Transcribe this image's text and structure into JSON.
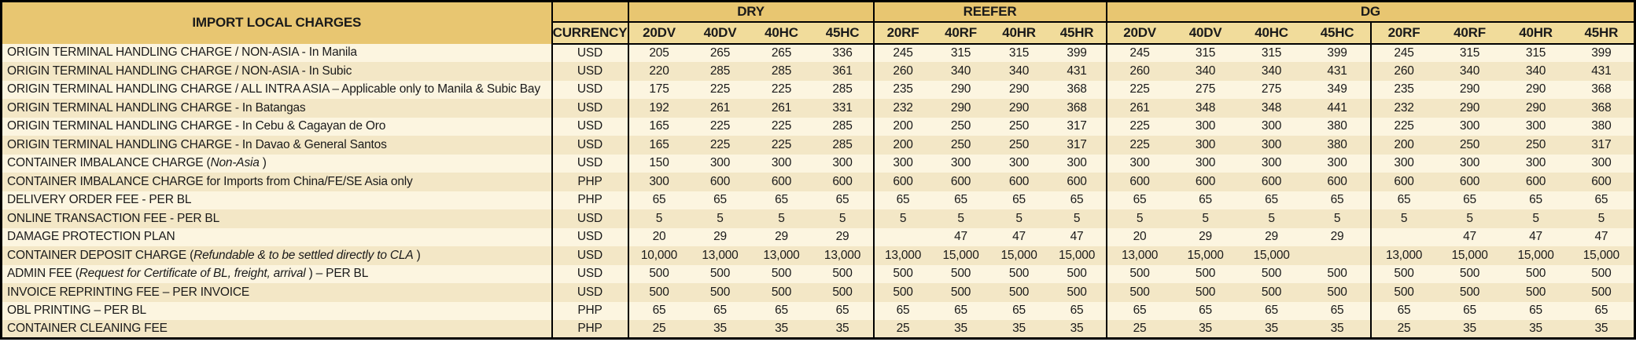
{
  "table": {
    "title": "IMPORT LOCAL CHARGES",
    "currency_header": "CURRENCY",
    "groups": [
      {
        "label": "DRY",
        "cols": [
          "20DV",
          "40DV",
          "40HC",
          "45HC"
        ]
      },
      {
        "label": "REEFER",
        "cols": [
          "20RF",
          "40RF",
          "40HR",
          "45HR"
        ]
      },
      {
        "label": "DG",
        "cols": [
          "20DV",
          "40DV",
          "40HC",
          "45HC",
          "20RF",
          "40RF",
          "40HR",
          "45HR"
        ]
      }
    ],
    "colors": {
      "header_gold": "#e8c671",
      "header_gold_light": "#f1dc9b",
      "row_light": "#fcf5e0",
      "row_alt": "#f3e7c6",
      "border": "#000000",
      "text": "#1a1a1a"
    },
    "rows": [
      {
        "label_prefix": "ORIGIN TERMINAL HANDLING CHARGE / NON-ASIA - In Manila",
        "label_italic": "",
        "label_suffix": "",
        "currency": "USD",
        "values": [
          "205",
          "265",
          "265",
          "336",
          "245",
          "315",
          "315",
          "399",
          "245",
          "315",
          "315",
          "399",
          "245",
          "315",
          "315",
          "399"
        ]
      },
      {
        "label_prefix": "ORIGIN TERMINAL HANDLING CHARGE / NON-ASIA - In Subic",
        "label_italic": "",
        "label_suffix": "",
        "currency": "USD",
        "values": [
          "220",
          "285",
          "285",
          "361",
          "260",
          "340",
          "340",
          "431",
          "260",
          "340",
          "340",
          "431",
          "260",
          "340",
          "340",
          "431"
        ]
      },
      {
        "label_prefix": "ORIGIN TERMINAL HANDLING CHARGE / ALL INTRA ASIA – Applicable only to Manila & Subic Bay",
        "label_italic": "",
        "label_suffix": "",
        "currency": "USD",
        "values": [
          "175",
          "225",
          "225",
          "285",
          "235",
          "290",
          "290",
          "368",
          "225",
          "275",
          "275",
          "349",
          "235",
          "290",
          "290",
          "368"
        ]
      },
      {
        "label_prefix": "ORIGIN TERMINAL HANDLING CHARGE - In Batangas",
        "label_italic": "",
        "label_suffix": "",
        "currency": "USD",
        "values": [
          "192",
          "261",
          "261",
          "331",
          "232",
          "290",
          "290",
          "368",
          "261",
          "348",
          "348",
          "441",
          "232",
          "290",
          "290",
          "368"
        ]
      },
      {
        "label_prefix": "ORIGIN TERMINAL HANDLING CHARGE - In Cebu & Cagayan de Oro",
        "label_italic": "",
        "label_suffix": "",
        "currency": "USD",
        "values": [
          "165",
          "225",
          "225",
          "285",
          "200",
          "250",
          "250",
          "317",
          "225",
          "300",
          "300",
          "380",
          "225",
          "300",
          "300",
          "380"
        ]
      },
      {
        "label_prefix": "ORIGIN TERMINAL HANDLING CHARGE - In Davao & General Santos",
        "label_italic": "",
        "label_suffix": "",
        "currency": "USD",
        "values": [
          "165",
          "225",
          "225",
          "285",
          "200",
          "250",
          "250",
          "317",
          "225",
          "300",
          "300",
          "380",
          "200",
          "250",
          "250",
          "317"
        ]
      },
      {
        "label_prefix": "CONTAINER IMBALANCE CHARGE (",
        "label_italic": "Non-Asia",
        "label_suffix": " )",
        "currency": "USD",
        "values": [
          "150",
          "300",
          "300",
          "300",
          "300",
          "300",
          "300",
          "300",
          "300",
          "300",
          "300",
          "300",
          "300",
          "300",
          "300",
          "300"
        ]
      },
      {
        "label_prefix": "CONTAINER IMBALANCE CHARGE for Imports from China/FE/SE Asia only",
        "label_italic": "",
        "label_suffix": "",
        "currency": "PHP",
        "values": [
          "300",
          "600",
          "600",
          "600",
          "600",
          "600",
          "600",
          "600",
          "600",
          "600",
          "600",
          "600",
          "600",
          "600",
          "600",
          "600"
        ]
      },
      {
        "label_prefix": "DELIVERY ORDER FEE - PER BL",
        "label_italic": "",
        "label_suffix": "",
        "currency": "PHP",
        "values": [
          "65",
          "65",
          "65",
          "65",
          "65",
          "65",
          "65",
          "65",
          "65",
          "65",
          "65",
          "65",
          "65",
          "65",
          "65",
          "65"
        ]
      },
      {
        "label_prefix": "ONLINE TRANSACTION FEE - PER BL",
        "label_italic": "",
        "label_suffix": "",
        "currency": "USD",
        "values": [
          "5",
          "5",
          "5",
          "5",
          "5",
          "5",
          "5",
          "5",
          "5",
          "5",
          "5",
          "5",
          "5",
          "5",
          "5",
          "5"
        ]
      },
      {
        "label_prefix": "DAMAGE PROTECTION PLAN",
        "label_italic": "",
        "label_suffix": "",
        "currency": "USD",
        "values": [
          "20",
          "29",
          "29",
          "29",
          "",
          "47",
          "47",
          "47",
          "20",
          "29",
          "29",
          "29",
          "",
          "47",
          "47",
          "47"
        ]
      },
      {
        "label_prefix": "CONTAINER DEPOSIT CHARGE (",
        "label_italic": "Refundable & to be settled directly to CLA",
        "label_suffix": " )",
        "currency": "USD",
        "values": [
          "10,000",
          "13,000",
          "13,000",
          "13,000",
          "13,000",
          "15,000",
          "15,000",
          "15,000",
          "13,000",
          "15,000",
          "15,000",
          "",
          "13,000",
          "15,000",
          "15,000",
          "15,000"
        ]
      },
      {
        "label_prefix": "ADMIN FEE (",
        "label_italic": "Request for Certificate of BL, freight, arrival",
        "label_suffix": " ) – PER BL",
        "currency": "USD",
        "values": [
          "500",
          "500",
          "500",
          "500",
          "500",
          "500",
          "500",
          "500",
          "500",
          "500",
          "500",
          "500",
          "500",
          "500",
          "500",
          "500"
        ]
      },
      {
        "label_prefix": "INVOICE REPRINTING FEE – PER INVOICE",
        "label_italic": "",
        "label_suffix": "",
        "currency": "USD",
        "values": [
          "500",
          "500",
          "500",
          "500",
          "500",
          "500",
          "500",
          "500",
          "500",
          "500",
          "500",
          "500",
          "500",
          "500",
          "500",
          "500"
        ]
      },
      {
        "label_prefix": "OBL PRINTING – PER BL",
        "label_italic": "",
        "label_suffix": "",
        "currency": "PHP",
        "values": [
          "65",
          "65",
          "65",
          "65",
          "65",
          "65",
          "65",
          "65",
          "65",
          "65",
          "65",
          "65",
          "65",
          "65",
          "65",
          "65"
        ]
      },
      {
        "label_prefix": "CONTAINER CLEANING FEE",
        "label_italic": "",
        "label_suffix": "",
        "currency": "PHP",
        "values": [
          "25",
          "35",
          "35",
          "35",
          "25",
          "35",
          "35",
          "35",
          "25",
          "35",
          "35",
          "35",
          "25",
          "35",
          "35",
          "35"
        ]
      }
    ]
  }
}
